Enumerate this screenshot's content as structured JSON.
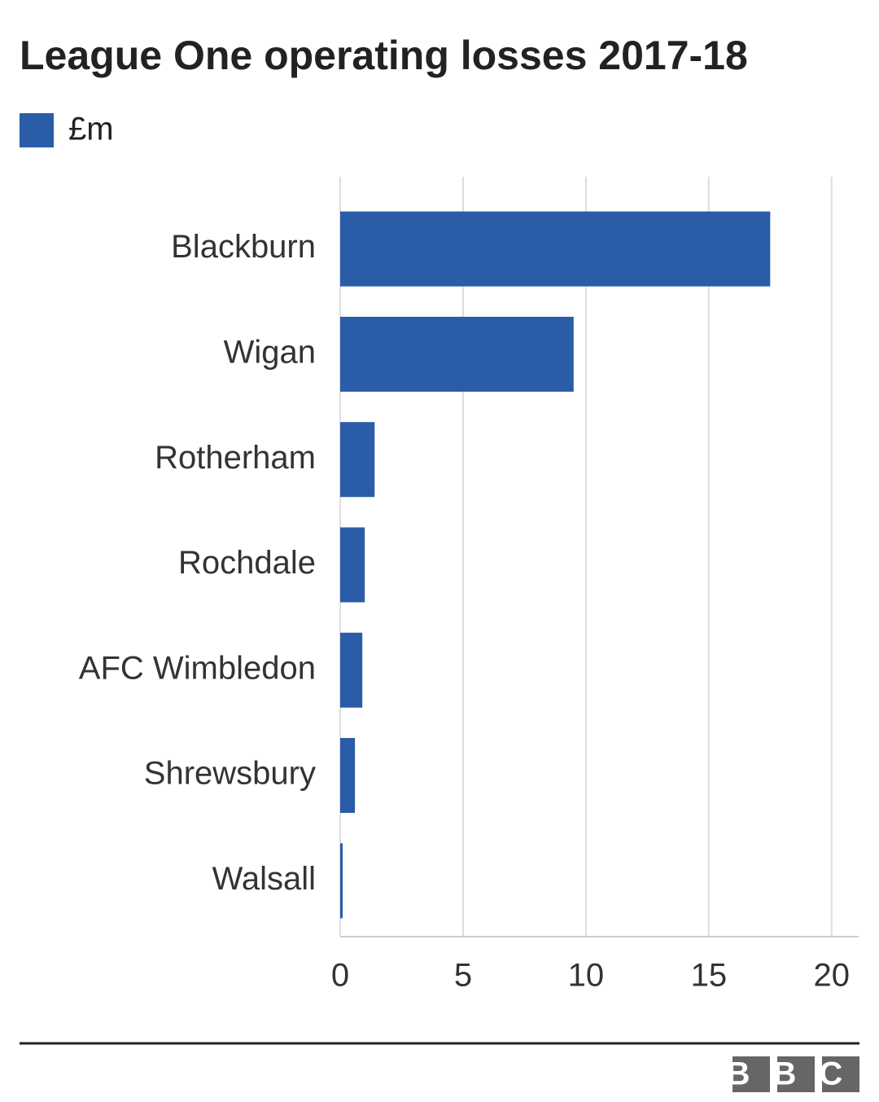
{
  "chart_data": {
    "type": "bar",
    "orientation": "horizontal",
    "title": "League One operating losses 2017-18",
    "categories": [
      "Blackburn",
      "Wigan",
      "Rotherham",
      "Rochdale",
      "AFC Wimbledon",
      "Shrewsbury",
      "Walsall"
    ],
    "series": [
      {
        "name": "£m",
        "color": "#2a5ca8",
        "values": [
          17.5,
          9.5,
          1.4,
          1.0,
          0.9,
          0.6,
          0.1
        ]
      }
    ],
    "xlim": [
      0,
      21.1
    ],
    "xticks": [
      0,
      5,
      10,
      15,
      20
    ],
    "grid": true,
    "legend": "top-left"
  },
  "logo": "BBC"
}
